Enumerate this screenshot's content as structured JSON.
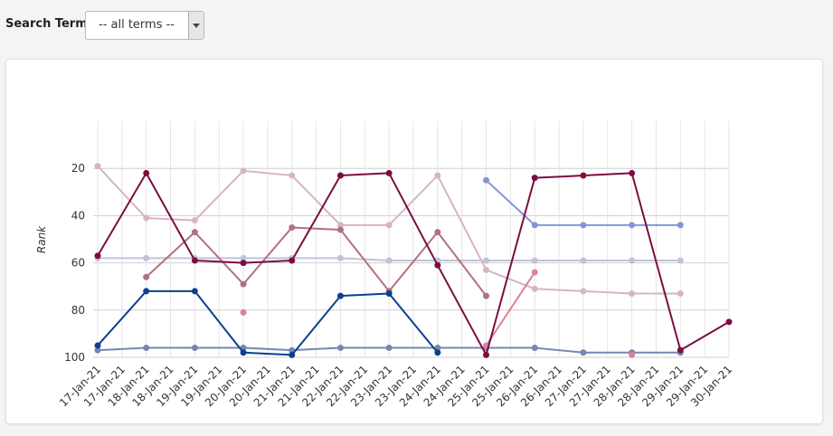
{
  "search_label": "Search Term:",
  "search_value": "-- all terms --",
  "chart_data": {
    "type": "line",
    "y_label": "Rank",
    "y_inverted": true,
    "ylim": [
      0,
      100
    ],
    "yticks": [
      20,
      40,
      60,
      80,
      100
    ],
    "grid": true,
    "categories": [
      "17-Jan-21",
      "17-Jan-21",
      "18-Jan-21",
      "18-Jan-21",
      "19-Jan-21",
      "19-Jan-21",
      "20-Jan-21",
      "20-Jan-21",
      "21-Jan-21",
      "21-Jan-21",
      "22-Jan-21",
      "22-Jan-21",
      "23-Jan-21",
      "23-Jan-21",
      "24-Jan-21",
      "24-Jan-21",
      "25-Jan-21",
      "25-Jan-21",
      "26-Jan-21",
      "26-Jan-21",
      "27-Jan-21",
      "27-Jan-21",
      "28-Jan-21",
      "28-Jan-21",
      "29-Jan-21",
      "29-Jan-21",
      "30-Jan-21"
    ],
    "series": [
      {
        "color": "#c0c2da",
        "values": [
          58,
          null,
          58,
          null,
          58,
          null,
          58,
          null,
          58,
          null,
          58,
          null,
          59,
          null,
          59,
          null,
          59,
          null,
          59,
          null,
          59,
          null,
          59,
          null,
          59,
          null,
          null
        ]
      },
      {
        "color": "#7585b5",
        "values": [
          97,
          null,
          96,
          null,
          96,
          null,
          96,
          null,
          97,
          null,
          96,
          null,
          96,
          null,
          96,
          null,
          96,
          null,
          96,
          null,
          98,
          null,
          98,
          null,
          98,
          null,
          null
        ]
      },
      {
        "color": "#d6b5c2",
        "values": [
          19,
          null,
          41,
          null,
          42,
          null,
          21,
          null,
          23,
          null,
          44,
          null,
          44,
          null,
          23,
          null,
          63,
          null,
          71,
          null,
          72,
          null,
          73,
          null,
          73,
          null,
          null
        ]
      },
      {
        "color": "#b2717f",
        "values": [
          null,
          null,
          66,
          null,
          47,
          null,
          69,
          null,
          45,
          null,
          46,
          null,
          72,
          null,
          47,
          null,
          74,
          null,
          null,
          null,
          null,
          null,
          null,
          null,
          null,
          null,
          null
        ]
      },
      {
        "color": "#d9839a",
        "values": [
          null,
          null,
          null,
          null,
          null,
          null,
          null,
          null,
          null,
          null,
          null,
          null,
          null,
          null,
          null,
          null,
          95,
          null,
          64,
          null,
          null,
          null,
          null,
          null,
          null,
          null,
          null
        ]
      },
      {
        "color": "#d9839a",
        "line": false,
        "values": [
          null,
          null,
          null,
          null,
          null,
          null,
          81,
          null,
          null,
          null,
          null,
          null,
          null,
          null,
          null,
          null,
          null,
          null,
          null,
          null,
          null,
          null,
          99,
          null,
          null,
          null,
          null
        ]
      },
      {
        "color": "#0d3f8f",
        "values": [
          95,
          null,
          72,
          null,
          72,
          null,
          98,
          null,
          99,
          null,
          74,
          null,
          73,
          null,
          98,
          null,
          null,
          null,
          null,
          null,
          null,
          null,
          null,
          null,
          null,
          null,
          null
        ]
      },
      {
        "color": "#8594d8",
        "values": [
          null,
          null,
          null,
          null,
          null,
          null,
          null,
          null,
          null,
          null,
          null,
          null,
          null,
          null,
          null,
          null,
          25,
          null,
          44,
          null,
          44,
          null,
          44,
          null,
          44,
          null,
          null
        ]
      },
      {
        "color": "#7b0d43",
        "values": [
          57,
          null,
          22,
          null,
          59,
          null,
          60,
          null,
          59,
          null,
          23,
          null,
          22,
          null,
          61,
          null,
          99,
          null,
          24,
          null,
          23,
          null,
          22,
          null,
          97,
          null,
          85
        ]
      }
    ]
  }
}
